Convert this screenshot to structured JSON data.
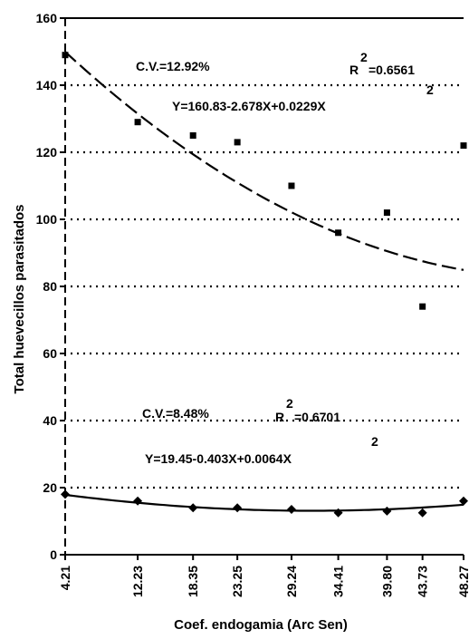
{
  "chart_data": {
    "type": "scatter",
    "title": "",
    "xlabel": "Coef. endogamia (Arc Sen)",
    "ylabel": "Total huevecillos parasitados",
    "categories": [
      "4.21",
      "12.23",
      "18.35",
      "23.25",
      "29.24",
      "34.41",
      "39.80",
      "43.73",
      "48.27"
    ],
    "x_values": [
      4.21,
      12.23,
      18.35,
      23.25,
      29.24,
      34.41,
      39.8,
      43.73,
      48.27
    ],
    "ylim": [
      0,
      160
    ],
    "yticks": [
      "0",
      "20",
      "40",
      "60",
      "80",
      "100",
      "120",
      "140",
      "160"
    ],
    "grid": "horizontal dotted",
    "series": [
      {
        "values": [
          149,
          129,
          125,
          123,
          110,
          96,
          102,
          74,
          122
        ],
        "fit": {
          "equation": "Y=160.83-2.678X+0.0229X²",
          "a": 160.83,
          "b": -2.678,
          "c": 0.0229,
          "style": "dashed"
        }
      },
      {
        "values": [
          18,
          16,
          14,
          14,
          13.5,
          12.5,
          13,
          12.5,
          16
        ],
        "fit": {
          "equation": "Y=19.45-0.403X+0.0064X²",
          "a": 19.45,
          "b": -0.403,
          "c": 0.0064,
          "style": "solid"
        }
      }
    ],
    "annotations": {
      "upper": {
        "cv": "C.V.=12.92%",
        "r2": "R²=0.6561",
        "equation_main": "Y=160.83-2.678X+0.0229X",
        "equation_exp": "2"
      },
      "lower": {
        "cv": "C.V.=8.48%",
        "r2": "R²=0.6701",
        "equation_main": "Y=19.45-0.403X+0.0064X",
        "equation_exp": "2"
      }
    },
    "r_symbol": "R",
    "r_exp": "2",
    "r_upper_value": "=0.6561",
    "r_lower_value": "=0.6701"
  }
}
